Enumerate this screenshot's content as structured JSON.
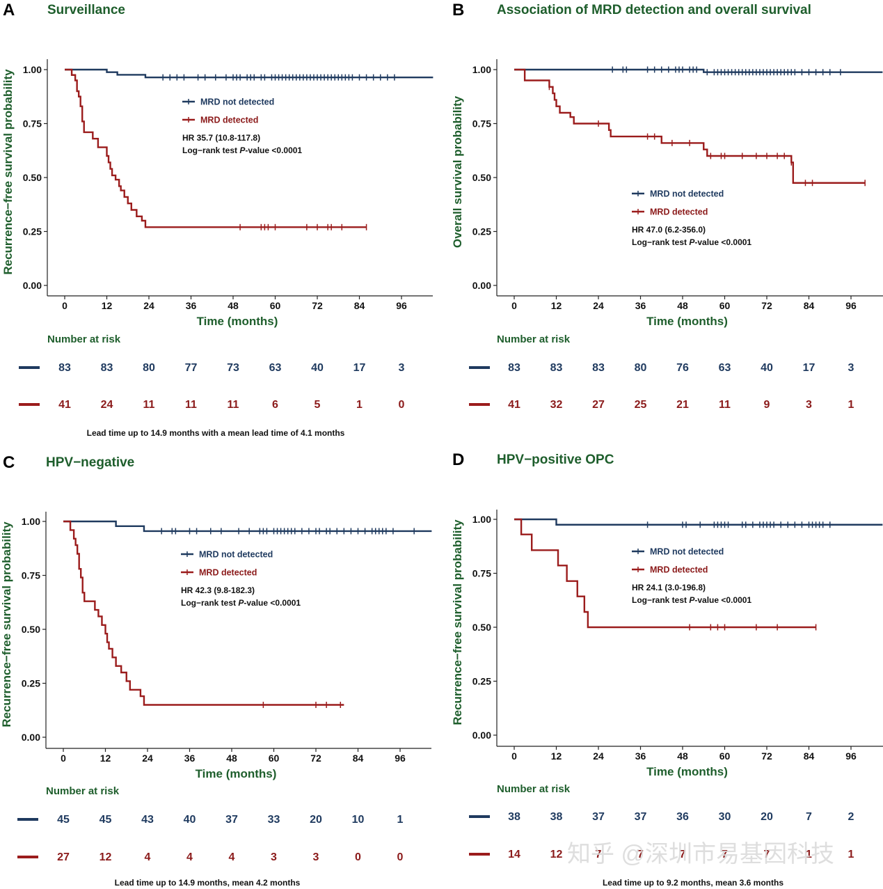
{
  "watermark": "知乎 @深圳市易基因科技",
  "colors": {
    "blue": "#1f3a5f",
    "red": "#9b1c1c",
    "green": "#1e5e2c"
  },
  "chart_data": [
    {
      "type": "line",
      "panel": "A",
      "title": "Surveillance",
      "xlabel": "Time (months)",
      "ylabel": "Recurrence−free survival probability",
      "xlim": [
        -3,
        105
      ],
      "ylim": [
        0,
        1
      ],
      "xticks": [
        "0",
        "12",
        "24",
        "36",
        "48",
        "60",
        "72",
        "84",
        "96"
      ],
      "yticks": [
        "0.00",
        "0.25",
        "0.50",
        "0.75",
        "1.00"
      ],
      "legend": [
        "MRD not detected",
        "MRD detected"
      ],
      "hr_text": "HR 35.7 (10.8-117.8)",
      "logrank_prefix": "Log−rank test ",
      "logrank_p": "P",
      "logrank_suffix": "-value <0.0001",
      "risk_title": "Number at risk",
      "risk_blue": [
        "83",
        "83",
        "80",
        "77",
        "73",
        "63",
        "40",
        "17",
        "3"
      ],
      "risk_red": [
        "41",
        "24",
        "11",
        "11",
        "11",
        "6",
        "5",
        "1",
        "0"
      ],
      "lead": "Lead time up to 14.9 months with a mean lead time of 4.1 months",
      "series": [
        {
          "name": "MRD not detected",
          "color": "blue",
          "steps": [
            [
              0,
              1
            ],
            [
              12,
              0.988
            ],
            [
              15,
              0.976
            ],
            [
              23,
              0.964
            ],
            [
              105,
              0.964
            ]
          ],
          "censors": [
            28,
            30,
            32,
            34,
            38,
            40,
            43,
            46,
            48,
            49,
            50,
            52,
            53,
            54,
            56,
            57,
            59,
            60,
            61,
            62,
            63,
            64,
            65,
            66,
            67,
            68,
            69,
            70,
            71,
            72,
            73,
            74,
            75,
            76,
            77,
            78,
            79,
            80,
            81,
            82,
            84,
            86,
            88,
            90,
            92,
            94
          ]
        },
        {
          "name": "MRD detected",
          "color": "red",
          "steps": [
            [
              0,
              1
            ],
            [
              2,
              0.975
            ],
            [
              3,
              0.95
            ],
            [
              3.5,
              0.9
            ],
            [
              4,
              0.875
            ],
            [
              4.5,
              0.83
            ],
            [
              5,
              0.76
            ],
            [
              5.5,
              0.71
            ],
            [
              7,
              0.71
            ],
            [
              8,
              0.68
            ],
            [
              9.5,
              0.64
            ],
            [
              11,
              0.64
            ],
            [
              12,
              0.6
            ],
            [
              12.5,
              0.57
            ],
            [
              13,
              0.54
            ],
            [
              13.5,
              0.51
            ],
            [
              14.5,
              0.49
            ],
            [
              15.5,
              0.46
            ],
            [
              16,
              0.44
            ],
            [
              17,
              0.41
            ],
            [
              18,
              0.38
            ],
            [
              19,
              0.35
            ],
            [
              20.5,
              0.32
            ],
            [
              22,
              0.3
            ],
            [
              23,
              0.27
            ],
            [
              86,
              0.27
            ]
          ],
          "censors": [
            50,
            56,
            57,
            58,
            60,
            69,
            72,
            75,
            76,
            79,
            86
          ]
        }
      ]
    },
    {
      "type": "line",
      "panel": "B",
      "title": "Association of MRD detection and overall survival",
      "xlabel": "Time (months)",
      "ylabel": "Overall survival probability",
      "xlim": [
        -3,
        105
      ],
      "ylim": [
        0,
        1
      ],
      "xticks": [
        "0",
        "12",
        "24",
        "36",
        "48",
        "60",
        "72",
        "84",
        "96"
      ],
      "yticks": [
        "0.00",
        "0.25",
        "0.50",
        "0.75",
        "1.00"
      ],
      "legend": [
        "MRD not detected",
        "MRD detected"
      ],
      "hr_text": "HR 47.0 (6.2-356.0)",
      "logrank_prefix": "Log−rank test ",
      "logrank_p": "P",
      "logrank_suffix": "-value <0.0001",
      "risk_title": "Number at risk",
      "risk_blue": [
        "83",
        "83",
        "83",
        "80",
        "76",
        "63",
        "40",
        "17",
        "3"
      ],
      "risk_red": [
        "41",
        "32",
        "27",
        "25",
        "21",
        "11",
        "9",
        "3",
        "1"
      ],
      "lead": "",
      "series": [
        {
          "name": "MRD not detected",
          "color": "blue",
          "steps": [
            [
              0,
              1
            ],
            [
              53,
              1
            ],
            [
              54,
              0.988
            ],
            [
              105,
              0.988
            ]
          ],
          "censors": [
            28,
            31,
            32,
            38,
            40,
            42,
            44,
            46,
            47,
            48,
            50,
            51,
            52,
            55,
            57,
            58,
            59,
            60,
            61,
            62,
            63,
            64,
            65,
            66,
            67,
            68,
            69,
            70,
            71,
            72,
            73,
            74,
            75,
            76,
            77,
            78,
            79,
            80,
            82,
            84,
            86,
            88,
            90,
            93
          ]
        },
        {
          "name": "MRD detected",
          "color": "red",
          "steps": [
            [
              0,
              1
            ],
            [
              3,
              0.95
            ],
            [
              10,
              0.92
            ],
            [
              11,
              0.89
            ],
            [
              11.5,
              0.86
            ],
            [
              12,
              0.83
            ],
            [
              13,
              0.8
            ],
            [
              16,
              0.78
            ],
            [
              17,
              0.75
            ],
            [
              27,
              0.72
            ],
            [
              27.5,
              0.69
            ],
            [
              42,
              0.66
            ],
            [
              54,
              0.63
            ],
            [
              55,
              0.6
            ],
            [
              79,
              0.57
            ],
            [
              79.5,
              0.475
            ],
            [
              100,
              0.475
            ]
          ],
          "censors": [
            10,
            24,
            38,
            40,
            45,
            50,
            56,
            59,
            60,
            65,
            69,
            72,
            75,
            77,
            79,
            83,
            85,
            100
          ]
        }
      ]
    },
    {
      "type": "line",
      "panel": "C",
      "title": "HPV−negative",
      "xlabel": "Time (months)",
      "ylabel": "Recurrence−free survival probability",
      "xlim": [
        -3,
        105
      ],
      "ylim": [
        0,
        1
      ],
      "xticks": [
        "0",
        "12",
        "24",
        "36",
        "48",
        "60",
        "72",
        "84",
        "96"
      ],
      "yticks": [
        "0.00",
        "0.25",
        "0.50",
        "0.75",
        "1.00"
      ],
      "legend": [
        "MRD not detected",
        "MRD detected"
      ],
      "hr_text": "HR 42.3 (9.8-182.3)",
      "logrank_prefix": "Log−rank test ",
      "logrank_p": "P",
      "logrank_suffix": "-value <0.0001",
      "risk_title": "Number at risk",
      "risk_blue": [
        "45",
        "45",
        "43",
        "40",
        "37",
        "33",
        "20",
        "10",
        "1"
      ],
      "risk_red": [
        "27",
        "12",
        "4",
        "4",
        "4",
        "3",
        "3",
        "0",
        "0"
      ],
      "lead": "Lead time up to 14.9 months, mean 4.2 months",
      "series": [
        {
          "name": "MRD not detected",
          "color": "blue",
          "steps": [
            [
              0,
              1
            ],
            [
              15,
              0.978
            ],
            [
              23,
              0.955
            ],
            [
              105,
              0.955
            ]
          ],
          "censors": [
            28,
            31,
            32,
            36,
            38,
            42,
            45,
            50,
            53,
            56,
            57,
            58,
            60,
            61,
            62,
            63,
            64,
            65,
            66,
            68,
            70,
            72,
            73,
            75,
            76,
            78,
            80,
            82,
            84,
            86,
            88,
            89,
            90,
            91,
            92,
            94,
            100
          ]
        },
        {
          "name": "MRD detected",
          "color": "red",
          "steps": [
            [
              0,
              1
            ],
            [
              2,
              0.96
            ],
            [
              3,
              0.92
            ],
            [
              3.5,
              0.89
            ],
            [
              4,
              0.85
            ],
            [
              4.5,
              0.78
            ],
            [
              5,
              0.74
            ],
            [
              5.5,
              0.67
            ],
            [
              6,
              0.63
            ],
            [
              8,
              0.63
            ],
            [
              9,
              0.59
            ],
            [
              10,
              0.56
            ],
            [
              11,
              0.52
            ],
            [
              12,
              0.48
            ],
            [
              12.5,
              0.44
            ],
            [
              13,
              0.41
            ],
            [
              14,
              0.37
            ],
            [
              15,
              0.33
            ],
            [
              16.5,
              0.3
            ],
            [
              18,
              0.26
            ],
            [
              19,
              0.22
            ],
            [
              22,
              0.19
            ],
            [
              23,
              0.15
            ],
            [
              80,
              0.15
            ]
          ],
          "censors": [
            57,
            72,
            75,
            79
          ]
        }
      ]
    },
    {
      "type": "line",
      "panel": "D",
      "title": "HPV−positive OPC",
      "xlabel": "Time (months)",
      "ylabel": "Recurrence−free survival probability",
      "xlim": [
        -3,
        105
      ],
      "ylim": [
        0,
        1
      ],
      "xticks": [
        "0",
        "12",
        "24",
        "36",
        "48",
        "60",
        "72",
        "84",
        "96"
      ],
      "yticks": [
        "0.00",
        "0.25",
        "0.50",
        "0.75",
        "1.00"
      ],
      "legend": [
        "MRD not detected",
        "MRD detected"
      ],
      "hr_text": "HR 24.1 (3.0-196.8)",
      "logrank_prefix": "Log−rank test ",
      "logrank_p": "P",
      "logrank_suffix": "-value <0.0001",
      "risk_title": "Number at risk",
      "risk_blue": [
        "38",
        "38",
        "37",
        "37",
        "36",
        "30",
        "20",
        "7",
        "2"
      ],
      "risk_red": [
        "14",
        "12",
        "7",
        "7",
        "7",
        "7",
        "7",
        "1",
        "1"
      ],
      "lead": "Lead time up to 9.2 months, mean 3.6 months",
      "series": [
        {
          "name": "MRD not detected",
          "color": "blue",
          "steps": [
            [
              0,
              1
            ],
            [
              12,
              0.975
            ],
            [
              105,
              0.975
            ]
          ],
          "censors": [
            38,
            48,
            49,
            53,
            57,
            58,
            59,
            60,
            61,
            65,
            66,
            68,
            70,
            71,
            72,
            73,
            74,
            76,
            78,
            80,
            82,
            84,
            85,
            86,
            87,
            88,
            90
          ]
        },
        {
          "name": "MRD detected",
          "color": "red",
          "steps": [
            [
              0,
              1
            ],
            [
              2,
              0.93
            ],
            [
              5,
              0.857
            ],
            [
              12.5,
              0.786
            ],
            [
              15,
              0.714
            ],
            [
              18,
              0.643
            ],
            [
              20,
              0.571
            ],
            [
              21,
              0.5
            ],
            [
              86,
              0.5
            ]
          ],
          "censors": [
            50,
            56,
            58,
            60,
            69,
            75,
            86
          ]
        }
      ]
    }
  ]
}
